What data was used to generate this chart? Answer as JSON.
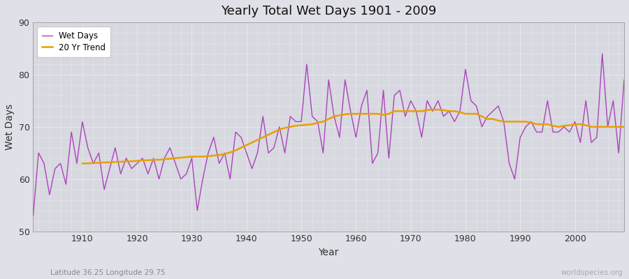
{
  "title": "Yearly Total Wet Days 1901 - 2009",
  "xlabel": "Year",
  "ylabel": "Wet Days",
  "subtitle": "Latitude 36.25 Longitude 29.75",
  "watermark": "worldspecies.org",
  "ylim": [
    50,
    90
  ],
  "yticks": [
    50,
    60,
    70,
    80,
    90
  ],
  "line_color": "#AA44BB",
  "trend_color": "#E8A000",
  "fig_background": "#E0E0E8",
  "plot_background": "#D8D8E0",
  "years": [
    1901,
    1902,
    1903,
    1904,
    1905,
    1906,
    1907,
    1908,
    1909,
    1910,
    1911,
    1912,
    1913,
    1914,
    1915,
    1916,
    1917,
    1918,
    1919,
    1920,
    1921,
    1922,
    1923,
    1924,
    1925,
    1926,
    1927,
    1928,
    1929,
    1930,
    1931,
    1932,
    1933,
    1934,
    1935,
    1936,
    1937,
    1938,
    1939,
    1940,
    1941,
    1942,
    1943,
    1944,
    1945,
    1946,
    1947,
    1948,
    1949,
    1950,
    1951,
    1952,
    1953,
    1954,
    1955,
    1956,
    1957,
    1958,
    1959,
    1960,
    1961,
    1962,
    1963,
    1964,
    1965,
    1966,
    1967,
    1968,
    1969,
    1970,
    1971,
    1972,
    1973,
    1974,
    1975,
    1976,
    1977,
    1978,
    1979,
    1980,
    1981,
    1982,
    1983,
    1984,
    1985,
    1986,
    1987,
    1988,
    1989,
    1990,
    1991,
    1992,
    1993,
    1994,
    1995,
    1996,
    1997,
    1998,
    1999,
    2000,
    2001,
    2002,
    2003,
    2004,
    2005,
    2006,
    2007,
    2008,
    2009
  ],
  "wet_days": [
    53,
    65,
    63,
    57,
    62,
    63,
    59,
    69,
    63,
    71,
    66,
    63,
    65,
    58,
    62,
    66,
    61,
    64,
    62,
    63,
    64,
    61,
    64,
    60,
    64,
    66,
    63,
    60,
    61,
    64,
    54,
    60,
    65,
    68,
    63,
    65,
    60,
    69,
    68,
    65,
    62,
    65,
    72,
    65,
    66,
    70,
    65,
    72,
    71,
    71,
    82,
    72,
    71,
    65,
    79,
    72,
    68,
    79,
    73,
    68,
    74,
    77,
    63,
    65,
    77,
    64,
    76,
    77,
    72,
    75,
    73,
    68,
    75,
    73,
    75,
    72,
    73,
    71,
    73,
    81,
    75,
    74,
    70,
    72,
    73,
    74,
    71,
    63,
    60,
    68,
    70,
    71,
    69,
    69,
    75,
    69,
    69,
    70,
    69,
    71,
    67,
    75,
    67,
    68,
    84,
    70,
    75,
    65,
    79
  ],
  "trend_years": [
    1910,
    1911,
    1912,
    1913,
    1914,
    1915,
    1916,
    1917,
    1918,
    1919,
    1920,
    1921,
    1922,
    1923,
    1924,
    1925,
    1926,
    1927,
    1928,
    1929,
    1930,
    1931,
    1932,
    1933,
    1934,
    1935,
    1936,
    1937,
    1938,
    1939,
    1940,
    1941,
    1942,
    1943,
    1944,
    1945,
    1946,
    1947,
    1948,
    1949,
    1950,
    1951,
    1952,
    1953,
    1954,
    1955,
    1956,
    1957,
    1958,
    1959,
    1960,
    1961,
    1962,
    1963,
    1964,
    1965,
    1966,
    1967,
    1968,
    1969,
    1970,
    1971,
    1972,
    1973,
    1974,
    1975,
    1976,
    1977,
    1978,
    1979,
    1980,
    1981,
    1982,
    1983,
    1984,
    1985,
    1986,
    1987,
    1988,
    1989,
    1990,
    1991,
    1992,
    1993,
    1994,
    1995,
    1996,
    1997,
    1998,
    1999,
    2000,
    2001,
    2002,
    2003,
    2004,
    2005,
    2006,
    2007,
    2008,
    2009
  ],
  "trend_values": [
    63.0,
    63.0,
    63.1,
    63.1,
    63.2,
    63.2,
    63.3,
    63.3,
    63.4,
    63.4,
    63.5,
    63.6,
    63.6,
    63.7,
    63.7,
    63.8,
    63.9,
    64.0,
    64.1,
    64.2,
    64.3,
    64.3,
    64.3,
    64.4,
    64.5,
    64.6,
    64.8,
    65.1,
    65.5,
    66.0,
    66.5,
    67.0,
    67.5,
    68.0,
    68.5,
    69.0,
    69.5,
    69.8,
    70.0,
    70.2,
    70.3,
    70.4,
    70.5,
    70.8,
    71.0,
    71.5,
    72.0,
    72.2,
    72.4,
    72.5,
    72.5,
    72.5,
    72.5,
    72.5,
    72.5,
    72.3,
    72.5,
    73.0,
    73.0,
    73.0,
    73.0,
    73.0,
    73.0,
    73.2,
    73.3,
    73.3,
    73.2,
    73.0,
    73.0,
    72.8,
    72.5,
    72.5,
    72.5,
    72.0,
    71.5,
    71.5,
    71.2,
    71.0,
    71.0,
    71.0,
    71.0,
    71.0,
    70.8,
    70.5,
    70.5,
    70.5,
    70.2,
    70.0,
    70.2,
    70.3,
    70.5,
    70.5,
    70.3,
    70.0,
    70.0,
    70.0,
    70.0,
    70.0,
    70.0,
    70.0
  ]
}
